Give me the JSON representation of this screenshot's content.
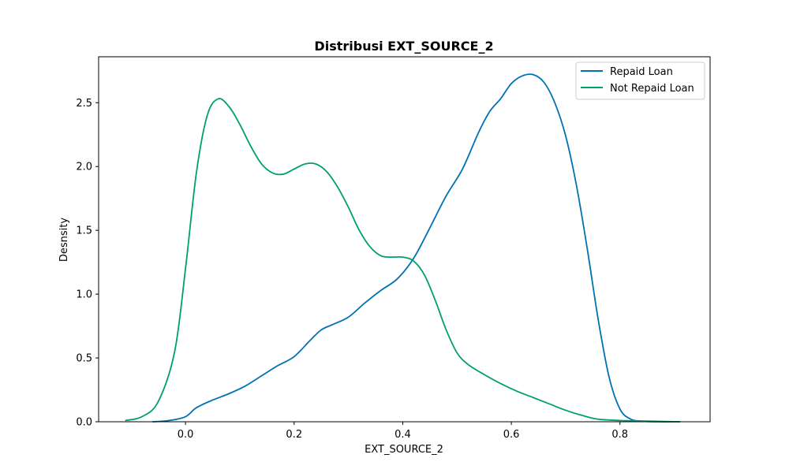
{
  "chart_data": {
    "type": "line",
    "title": "Distribusi EXT_SOURCE_2",
    "xlabel": "EXT_SOURCE_2",
    "ylabel": "Desnsity",
    "xlim": [
      -0.16,
      0.966
    ],
    "ylim": [
      0,
      2.86
    ],
    "xticks": [
      0.0,
      0.2,
      0.4,
      0.6,
      0.8
    ],
    "xtick_labels": [
      "0.0",
      "0.2",
      "0.4",
      "0.6",
      "0.8"
    ],
    "yticks": [
      0.0,
      0.5,
      1.0,
      1.5,
      2.0,
      2.5
    ],
    "ytick_labels": [
      "0.0",
      "0.5",
      "1.0",
      "1.5",
      "2.0",
      "2.5"
    ],
    "grid": false,
    "legend_position": "top-right",
    "series": [
      {
        "name": "Repaid Loan",
        "color": "#0072b2",
        "x": [
          -0.06,
          -0.03,
          0.0,
          0.02,
          0.05,
          0.08,
          0.11,
          0.14,
          0.17,
          0.2,
          0.23,
          0.25,
          0.27,
          0.3,
          0.33,
          0.36,
          0.39,
          0.42,
          0.45,
          0.48,
          0.51,
          0.54,
          0.56,
          0.58,
          0.6,
          0.62,
          0.64,
          0.66,
          0.68,
          0.7,
          0.72,
          0.74,
          0.76,
          0.78,
          0.8,
          0.82,
          0.84,
          0.87,
          0.91
        ],
        "y": [
          0.0,
          0.01,
          0.04,
          0.11,
          0.17,
          0.22,
          0.28,
          0.36,
          0.44,
          0.51,
          0.64,
          0.72,
          0.76,
          0.82,
          0.93,
          1.03,
          1.12,
          1.28,
          1.52,
          1.77,
          1.98,
          2.27,
          2.43,
          2.53,
          2.65,
          2.71,
          2.72,
          2.66,
          2.5,
          2.24,
          1.85,
          1.35,
          0.8,
          0.35,
          0.1,
          0.02,
          0.005,
          0.0,
          0.0
        ]
      },
      {
        "name": "Not Repaid Loan",
        "color": "#009e73",
        "x": [
          -0.11,
          -0.08,
          -0.05,
          -0.02,
          0.0,
          0.02,
          0.04,
          0.06,
          0.08,
          0.1,
          0.12,
          0.14,
          0.16,
          0.18,
          0.2,
          0.22,
          0.24,
          0.26,
          0.28,
          0.3,
          0.32,
          0.34,
          0.36,
          0.38,
          0.4,
          0.42,
          0.44,
          0.46,
          0.48,
          0.5,
          0.52,
          0.55,
          0.58,
          0.61,
          0.64,
          0.67,
          0.7,
          0.73,
          0.76,
          0.8,
          0.85,
          0.91
        ],
        "y": [
          0.01,
          0.04,
          0.16,
          0.55,
          1.2,
          1.95,
          2.4,
          2.53,
          2.47,
          2.33,
          2.16,
          2.02,
          1.95,
          1.94,
          1.98,
          2.02,
          2.02,
          1.96,
          1.84,
          1.68,
          1.5,
          1.37,
          1.3,
          1.29,
          1.29,
          1.26,
          1.15,
          0.95,
          0.72,
          0.54,
          0.45,
          0.37,
          0.3,
          0.24,
          0.19,
          0.14,
          0.09,
          0.05,
          0.02,
          0.01,
          0.005,
          0.0
        ]
      }
    ]
  }
}
